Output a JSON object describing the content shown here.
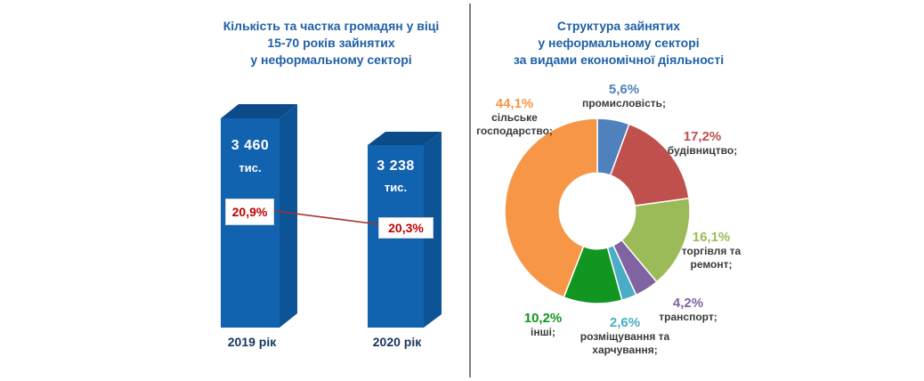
{
  "left_chart": {
    "title_lines": [
      "Кількість та частка громадян у віці",
      "15-70 років зайнятих",
      "у неформальному секторі"
    ],
    "bars": [
      {
        "value_label": "3 460",
        "unit_label": "тис.",
        "pct_label": "20,9%",
        "year_label": "2019 рік"
      },
      {
        "value_label": "3 238",
        "unit_label": "тис.",
        "pct_label": "20,3%",
        "year_label": "2020 рік"
      }
    ],
    "colors": {
      "bar_front": "#1263AF",
      "bar_top": "#0A4B88",
      "bar_side": "#0D5496",
      "pct_text": "#C00000",
      "trend_line": "#A6302C"
    }
  },
  "right_chart": {
    "title_lines": [
      "Структура зайнятих",
      "у неформальному секторі",
      "за видами економічної діяльності"
    ],
    "labels": [
      {
        "pct": "5,6%",
        "lines": [
          "промисловість;"
        ]
      },
      {
        "pct": "17,2%",
        "lines": [
          "будівництво;"
        ]
      },
      {
        "pct": "16,1%",
        "lines": [
          "торгівля та",
          "ремонт;"
        ]
      },
      {
        "pct": "4,2%",
        "lines": [
          "транспорт;"
        ]
      },
      {
        "pct": "2,6%",
        "lines": [
          "розміщування та",
          "харчування;"
        ]
      },
      {
        "pct": "10,2%",
        "lines": [
          "інші;"
        ]
      },
      {
        "pct": "44,1%",
        "lines": [
          "сільське",
          "господарство;"
        ]
      }
    ]
  },
  "chart_data": [
    {
      "type": "bar",
      "title": "Кількість та частка громадян у віці 15-70 років зайнятих у неформальному секторі",
      "categories": [
        "2019 рік",
        "2020 рік"
      ],
      "values": [
        3460,
        3238
      ],
      "unit": "тис.",
      "share_percent": [
        20.9,
        20.3
      ],
      "bar_color": "#1263AF",
      "legend": "none",
      "grid": false
    },
    {
      "type": "pie",
      "title": "Структура зайнятих у неформальному секторі за видами економічної діяльності",
      "donut_hole_ratio": 0.41,
      "start_angle_deg": 0,
      "direction": "clockwise",
      "slices": [
        {
          "label": "промисловість",
          "value": 5.6,
          "color": "#4F81BD"
        },
        {
          "label": "будівництво",
          "value": 17.2,
          "color": "#C0504D"
        },
        {
          "label": "торгівля та ремонт",
          "value": 16.1,
          "color": "#9BBB59"
        },
        {
          "label": "транспорт",
          "value": 4.2,
          "color": "#8064A2"
        },
        {
          "label": "розміщування та харчування",
          "value": 2.6,
          "color": "#4BACC6"
        },
        {
          "label": "інші",
          "value": 10.2,
          "color": "#129622"
        },
        {
          "label": "сільське господарство",
          "value": 44.1,
          "color": "#F79646"
        }
      ]
    }
  ]
}
